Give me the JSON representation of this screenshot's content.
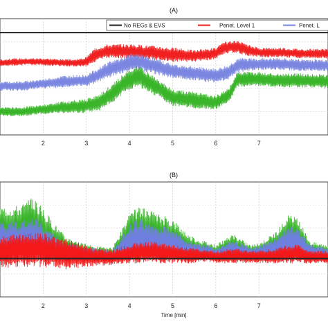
{
  "chart_data": [
    {
      "type": "line",
      "title": "(A)",
      "xlabel": "",
      "ylabel": "",
      "xlim": [
        1.0,
        8.6
      ],
      "ylim": [
        0,
        100
      ],
      "x_ticks": [
        2,
        3,
        4,
        5,
        6,
        7
      ],
      "grid": true,
      "legend": {
        "placement": "top-right",
        "entries": [
          "No REGs & EVS",
          "Penet. Level 1",
          "Penet. L"
        ]
      },
      "series": [
        {
          "name": "No REGs & EVS",
          "color": "#222222",
          "x": [
            1.0,
            8.6
          ],
          "y": [
            88,
            88
          ],
          "band": [
            0,
            0
          ]
        },
        {
          "name": "Penet. Level 1",
          "color": "#f02020",
          "x": [
            1.0,
            1.5,
            2.0,
            2.5,
            2.8,
            3.0,
            3.2,
            3.5,
            4.0,
            4.5,
            5.0,
            5.5,
            6.0,
            6.2,
            6.5,
            6.7,
            7.0,
            7.5,
            8.0,
            8.6
          ],
          "y": [
            62,
            63,
            63,
            62,
            62,
            63,
            69,
            72,
            72,
            71,
            69,
            68,
            70,
            75,
            76,
            73,
            71,
            71,
            70,
            70
          ],
          "band": [
            3,
            3,
            3,
            3,
            3,
            4,
            6,
            6,
            6,
            6,
            6,
            5,
            5,
            5,
            5,
            5,
            4,
            4,
            4,
            4
          ]
        },
        {
          "name": "Penet. L",
          "color": "#7a86e0",
          "x": [
            1.0,
            1.5,
            2.0,
            2.5,
            3.0,
            3.2,
            3.5,
            4.0,
            4.2,
            4.5,
            5.0,
            5.5,
            6.0,
            6.3,
            6.5,
            7.0,
            7.5,
            8.0,
            8.6
          ],
          "y": [
            42,
            42,
            44,
            46,
            47,
            50,
            56,
            62,
            63,
            60,
            55,
            53,
            51,
            54,
            60,
            61,
            61,
            60,
            60
          ],
          "band": [
            4,
            4,
            4,
            5,
            5,
            6,
            7,
            7,
            7,
            7,
            6,
            6,
            6,
            6,
            6,
            5,
            5,
            5,
            5
          ]
        },
        {
          "name": "",
          "color": "#3ab52a",
          "x": [
            1.0,
            1.5,
            2.0,
            2.5,
            3.0,
            3.3,
            3.6,
            4.0,
            4.2,
            4.5,
            5.0,
            5.5,
            6.0,
            6.3,
            6.5,
            7.0,
            7.5,
            8.0,
            8.6
          ],
          "y": [
            20,
            20,
            22,
            24,
            25,
            28,
            36,
            48,
            51,
            44,
            32,
            30,
            28,
            34,
            48,
            48,
            47,
            47,
            46
          ],
          "band": [
            4,
            4,
            4,
            5,
            6,
            7,
            8,
            9,
            9,
            8,
            7,
            7,
            6,
            6,
            7,
            6,
            6,
            6,
            6
          ]
        }
      ]
    },
    {
      "type": "line",
      "title": "(B)",
      "xlabel": "Time [min]",
      "ylabel": "",
      "xlim": [
        1.0,
        8.6
      ],
      "ylim": [
        -50,
        100
      ],
      "x_ticks": [
        2,
        3,
        4,
        5,
        6,
        7
      ],
      "grid": true,
      "series": [
        {
          "name": "",
          "color": "#3ab52a",
          "x": [
            1.0,
            1.4,
            1.8,
            2.1,
            2.5,
            2.9,
            3.2,
            3.6,
            4.0,
            4.2,
            4.6,
            5.0,
            5.4,
            5.8,
            6.0,
            6.4,
            6.8,
            7.0,
            7.4,
            7.7,
            7.9,
            8.2,
            8.6
          ],
          "y": [
            38,
            36,
            40,
            28,
            14,
            10,
            8,
            6,
            30,
            34,
            30,
            26,
            14,
            10,
            8,
            16,
            8,
            10,
            18,
            30,
            26,
            10,
            8
          ],
          "band": [
            30,
            34,
            40,
            30,
            16,
            10,
            8,
            8,
            28,
            34,
            30,
            26,
            16,
            12,
            10,
            16,
            10,
            10,
            18,
            28,
            26,
            12,
            10
          ]
        },
        {
          "name": "",
          "color": "#6f7fe0",
          "x": [
            1.0,
            1.4,
            1.8,
            2.1,
            2.5,
            2.9,
            3.2,
            3.6,
            4.0,
            4.2,
            4.6,
            5.0,
            5.4,
            5.8,
            6.0,
            6.4,
            6.8,
            7.0,
            7.4,
            7.7,
            7.9,
            8.2,
            8.6
          ],
          "y": [
            26,
            24,
            28,
            18,
            10,
            8,
            6,
            4,
            22,
            26,
            22,
            20,
            10,
            8,
            6,
            12,
            6,
            8,
            14,
            22,
            20,
            8,
            6
          ],
          "band": [
            22,
            24,
            26,
            20,
            12,
            8,
            8,
            6,
            22,
            26,
            22,
            20,
            12,
            10,
            8,
            12,
            8,
            8,
            14,
            20,
            20,
            10,
            8
          ]
        },
        {
          "name": "",
          "color": "#f41818",
          "x": [
            1.0,
            1.4,
            1.8,
            2.1,
            2.5,
            2.9,
            3.2,
            3.6,
            4.0,
            4.2,
            4.6,
            5.0,
            5.4,
            5.8,
            6.0,
            6.4,
            6.8,
            7.0,
            7.4,
            7.7,
            7.9,
            8.2,
            8.6
          ],
          "y": [
            8,
            10,
            12,
            10,
            6,
            4,
            2,
            2,
            6,
            8,
            8,
            6,
            4,
            4,
            2,
            4,
            2,
            2,
            4,
            6,
            6,
            2,
            2
          ],
          "band": [
            20,
            22,
            22,
            22,
            20,
            16,
            12,
            10,
            12,
            14,
            14,
            12,
            10,
            8,
            8,
            10,
            8,
            8,
            10,
            12,
            12,
            8,
            8
          ]
        },
        {
          "name": "",
          "color": "#222222",
          "x": [
            1.0,
            8.6
          ],
          "y": [
            0,
            0
          ],
          "band": [
            0,
            0
          ]
        }
      ]
    }
  ]
}
